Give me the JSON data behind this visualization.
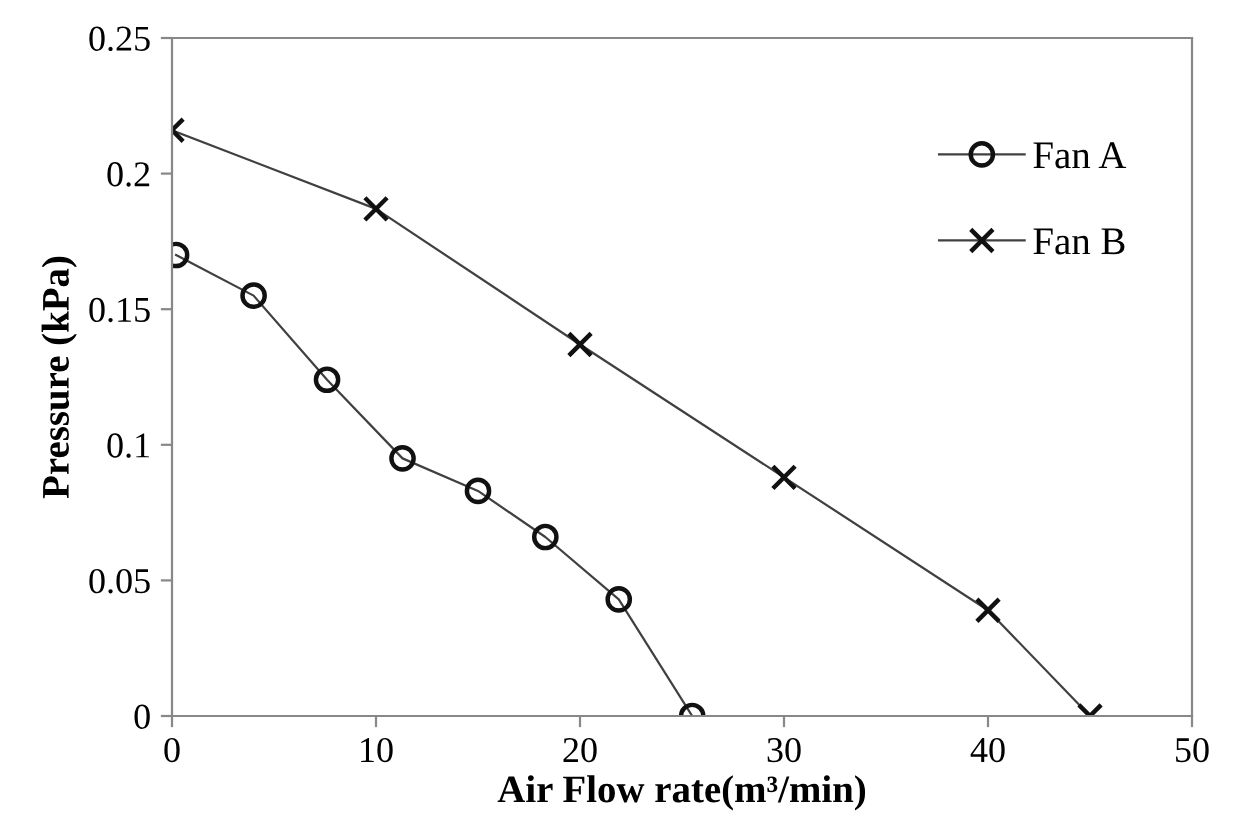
{
  "chart_data": {
    "type": "line",
    "xlabel": "Air Flow rate(m³/min)",
    "ylabel": "Pressure (kPa)",
    "xlim": [
      0,
      50
    ],
    "xticks": [
      0,
      10,
      20,
      30,
      40,
      50
    ],
    "ylim": [
      0,
      0.25
    ],
    "yticks": [
      0,
      0.05,
      0.1,
      0.15,
      0.2,
      0.25
    ],
    "grid": false,
    "legend": "top right",
    "line_style": "solid",
    "series": [
      {
        "name": "Fan A",
        "color": "#404040",
        "marker": "circle",
        "x": [
          0.2,
          4.0,
          7.6,
          11.3,
          15.0,
          18.3,
          21.9,
          25.5
        ],
        "values": [
          0.17,
          0.155,
          0.124,
          0.095,
          0.083,
          0.066,
          0.043,
          0
        ]
      },
      {
        "name": "Fan B",
        "color": "#404040",
        "marker": "cross",
        "x": [
          0,
          10,
          20,
          30,
          40,
          45
        ],
        "values": [
          0.216,
          0.187,
          0.137,
          0.088,
          0.039,
          0
        ]
      }
    ]
  }
}
